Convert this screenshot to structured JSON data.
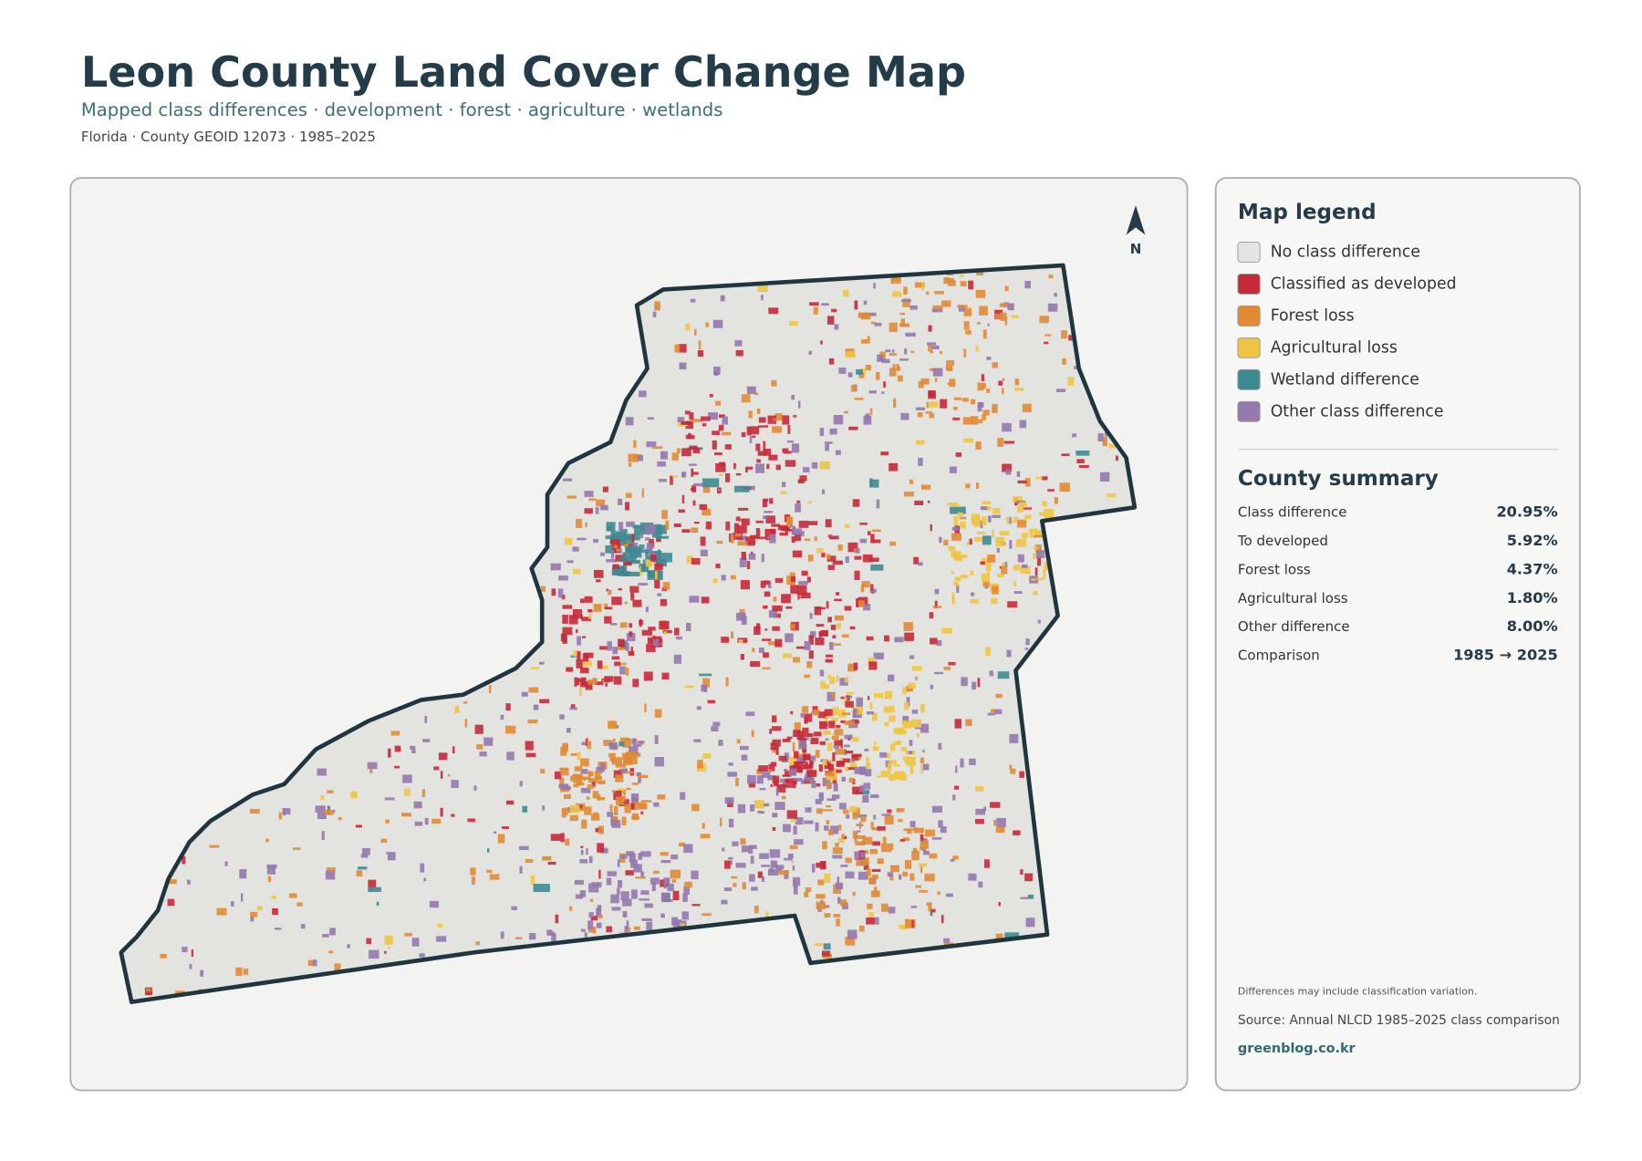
{
  "header": {
    "title": "Leon County Land Cover Change Map",
    "subtitle": "Mapped class differences · development · forest · agriculture · wetlands",
    "meta": "Florida · County GEOID 12073 · 1985–2025"
  },
  "map": {
    "north_label": "N"
  },
  "legend": {
    "title": "Map legend",
    "items": [
      {
        "label": "No class difference",
        "color": "#e3e3df"
      },
      {
        "label": "Classified as developed",
        "color": "#c8293a"
      },
      {
        "label": "Forest loss",
        "color": "#e08a35"
      },
      {
        "label": "Agricultural loss",
        "color": "#f0c442"
      },
      {
        "label": "Wetland difference",
        "color": "#3e8a93"
      },
      {
        "label": "Other class difference",
        "color": "#9478ae"
      }
    ]
  },
  "summary": {
    "title": "County summary",
    "rows": [
      [
        "Class difference",
        "20.95%"
      ],
      [
        "To developed",
        "5.92%"
      ],
      [
        "Forest loss",
        "4.37%"
      ],
      [
        "Agricultural loss",
        "1.80%"
      ],
      [
        "Other difference",
        "8.00%"
      ],
      [
        "Comparison",
        "1985 → 2025"
      ]
    ]
  },
  "notes": {
    "caveat": "Differences may include classification variation.",
    "source": "Source: Annual NLCD 1985–2025 class comparison",
    "site": "greenblog.co.kr"
  }
}
